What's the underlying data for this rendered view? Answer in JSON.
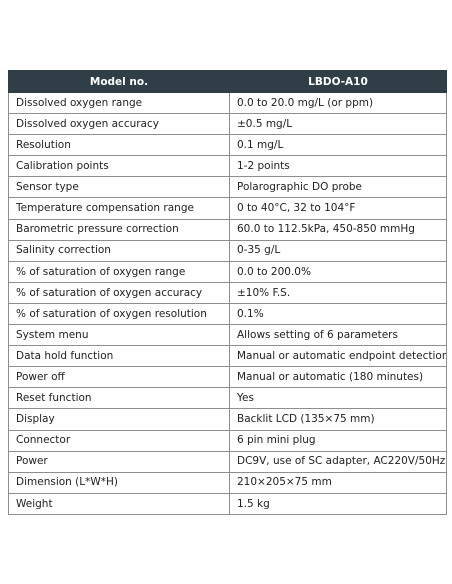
{
  "table": {
    "header": {
      "col1": "Model no.",
      "col2": "LBDO-A10"
    },
    "rows": [
      {
        "label": "Dissolved oxygen range",
        "value": "0.0 to 20.0 mg/L (or ppm)"
      },
      {
        "label": "Dissolved oxygen accuracy",
        "value": "±0.5 mg/L"
      },
      {
        "label": "Resolution",
        "value": "0.1 mg/L"
      },
      {
        "label": "Calibration points",
        "value": "1-2 points"
      },
      {
        "label": "Sensor type",
        "value": "Polarographic DO probe"
      },
      {
        "label": "Temperature compensation range",
        "value": "0 to 40°C, 32 to 104°F"
      },
      {
        "label": "Barometric pressure correction",
        "value": "60.0 to 112.5kPa, 450-850 mmHg"
      },
      {
        "label": "Salinity correction",
        "value": "0-35 g/L"
      },
      {
        "label": "% of saturation of oxygen range",
        "value": "0.0 to 200.0%"
      },
      {
        "label": "% of saturation of oxygen accuracy",
        "value": "±10% F.S."
      },
      {
        "label": "% of saturation of oxygen resolution",
        "value": "0.1%"
      },
      {
        "label": "System menu",
        "value": "Allows setting of 6 parameters"
      },
      {
        "label": "Data hold function",
        "value": "Manual or automatic  endpoint detection"
      },
      {
        "label": "Power off",
        "value": "Manual or automatic (180 minutes)"
      },
      {
        "label": "Reset function",
        "value": "Yes"
      },
      {
        "label": "Display",
        "value": "Backlit LCD (135×75 mm)"
      },
      {
        "label": "Connector",
        "value": "6 pin mini plug"
      },
      {
        "label": "Power",
        "value": "DC9V, use of SC adapter, AC220V/50Hz"
      },
      {
        "label": "Dimension (L*W*H)",
        "value": "210×205×75 mm"
      },
      {
        "label": "Weight",
        "value": "1.5 kg"
      }
    ]
  }
}
